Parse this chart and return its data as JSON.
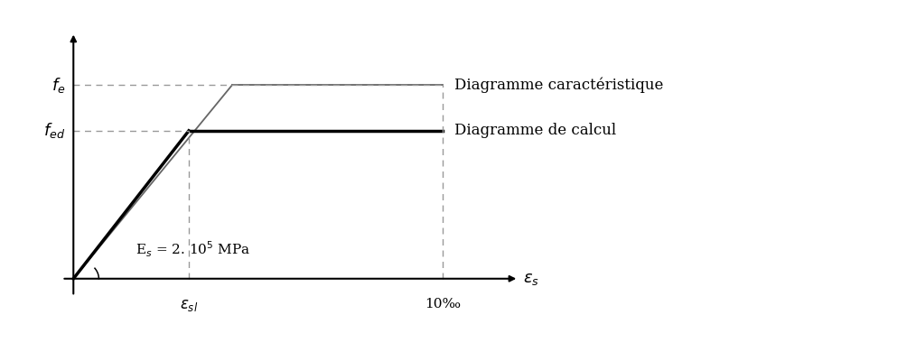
{
  "background_color": "#ffffff",
  "eps_sl": 2.5,
  "eps_10": 8.0,
  "eps_max": 9.5,
  "f_ed": 4.2,
  "f_e": 5.5,
  "f_max": 7.0,
  "eps_sl_char": 3.44,
  "label_eps_sl": "$\\varepsilon_{sl}$",
  "label_eps_10": "10‰",
  "label_eps_s": "$\\varepsilon_s$",
  "label_diag_car": "Diagramme caractéristique",
  "label_diag_cal": "Diagramme de calcul",
  "label_Es": "E$_s$ = 2. 10$^5$ MPa",
  "thin_line_color": "#666666",
  "thick_line_color": "#000000",
  "dashed_color": "#999999",
  "axis_color": "#000000"
}
